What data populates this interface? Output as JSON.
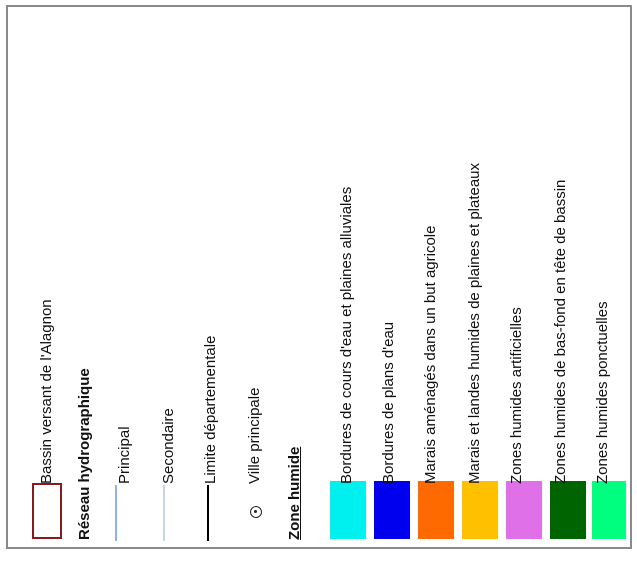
{
  "legend": {
    "bassin": {
      "label": "Bassin versant de l'Alagnon",
      "outline_color": "#8b1a1a"
    },
    "reseau_title": "Réseau hydrographique",
    "principal": {
      "label": "Principal",
      "color": "#8fb3d9"
    },
    "secondaire": {
      "label": "Secondaire",
      "color": "#c8d6e0"
    },
    "limite": {
      "label": "Limite départementale",
      "color": "#000000"
    },
    "ville": {
      "label": "Ville principale",
      "icon": "city-point-icon"
    },
    "zone_title": "Zone humide",
    "zones": [
      {
        "label": "Bordures de cours d'eau et plaines alluviales",
        "color": "#00f0f0"
      },
      {
        "label": "Bordures de plans d'eau",
        "color": "#0000ee"
      },
      {
        "label": "Marais aménagés dans un but agricole",
        "color": "#ff6a00"
      },
      {
        "label": "Marais et landes humides de plaines et plateaux",
        "color": "#ffc000"
      },
      {
        "label": "Zones humides artificielles",
        "color": "#e070e8"
      },
      {
        "label": "Zones humides de bas-fond en tête de bassin",
        "color": "#006400"
      },
      {
        "label": "Zones humides ponctuelles",
        "color": "#00ff7f"
      }
    ]
  }
}
